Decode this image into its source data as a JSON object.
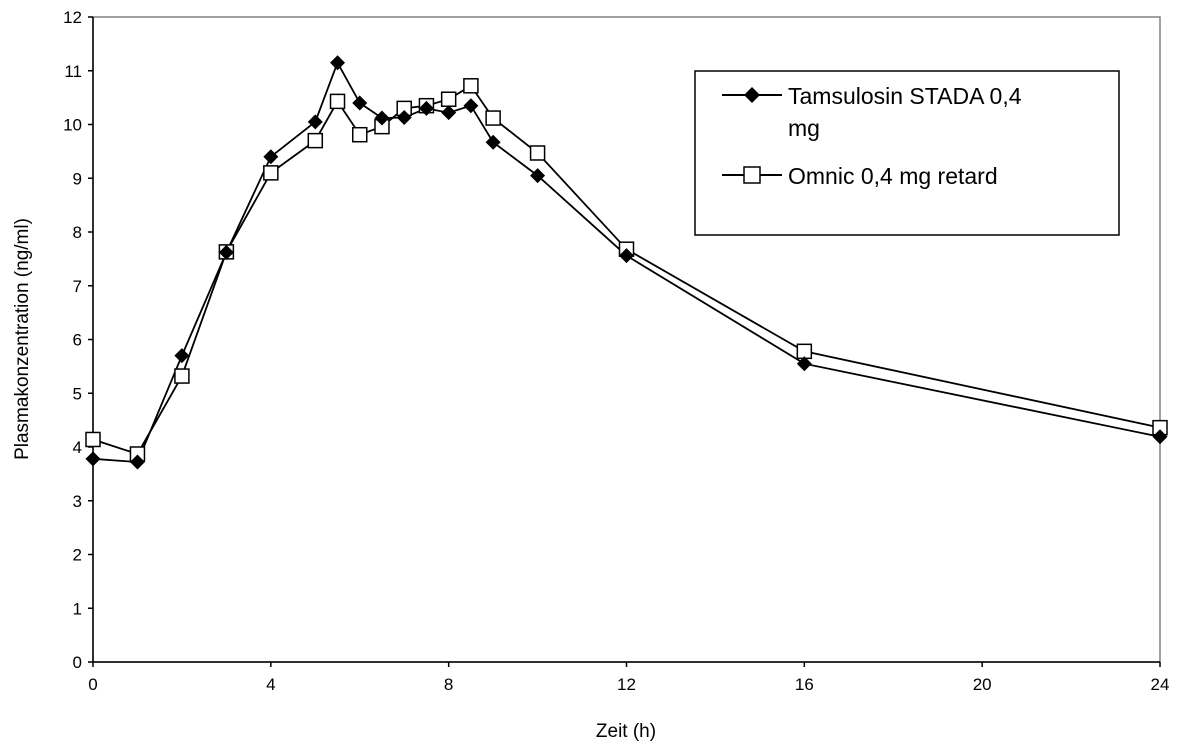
{
  "chart_data": {
    "type": "line",
    "title": "",
    "xlabel": "Zeit (h)",
    "ylabel": "Plasmakonzentration (ng/ml)",
    "xlim": [
      0,
      24
    ],
    "ylim": [
      0,
      12
    ],
    "xticks": [
      0,
      4,
      8,
      12,
      16,
      20,
      24
    ],
    "yticks": [
      0,
      1,
      2,
      3,
      4,
      5,
      6,
      7,
      8,
      9,
      10,
      11,
      12
    ],
    "grid": false,
    "legend_position": "top-right",
    "series": [
      {
        "name": "Tamsulosin STADA 0,4 mg",
        "marker": "diamond",
        "x": [
          0,
          1,
          2,
          3,
          4,
          5,
          5.5,
          6,
          6.5,
          7,
          7.5,
          8,
          8.5,
          9,
          10,
          12,
          16,
          24
        ],
        "y": [
          3.78,
          3.72,
          5.7,
          7.62,
          9.4,
          10.05,
          11.15,
          10.4,
          10.12,
          10.13,
          10.3,
          10.22,
          10.35,
          9.67,
          9.05,
          7.56,
          5.55,
          4.19
        ]
      },
      {
        "name": "Omnic 0,4 mg retard",
        "marker": "square-open",
        "x": [
          0,
          1,
          2,
          3,
          4,
          5,
          5.5,
          6,
          6.5,
          7,
          7.5,
          8,
          8.5,
          9,
          10,
          12,
          16,
          24
        ],
        "y": [
          4.14,
          3.87,
          5.32,
          7.63,
          9.1,
          9.7,
          10.43,
          9.81,
          9.96,
          10.3,
          10.35,
          10.47,
          10.72,
          10.12,
          9.47,
          7.68,
          5.78,
          4.36
        ]
      }
    ]
  }
}
